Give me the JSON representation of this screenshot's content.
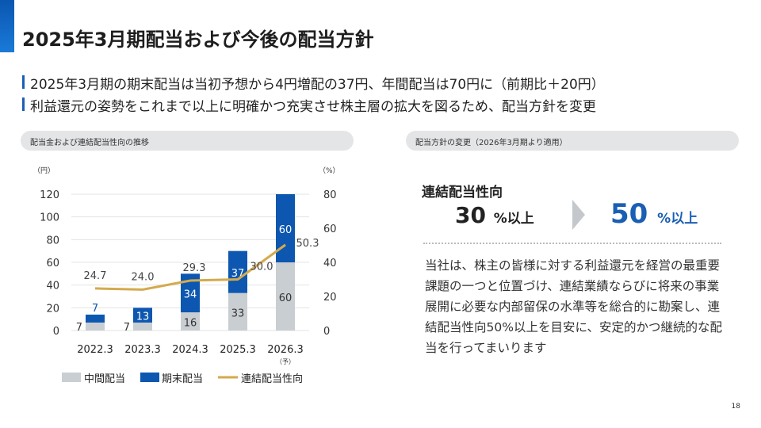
{
  "title": "2025年3月期配当および今後の配当方針",
  "bullets": [
    "2025年3月期の期末配当は当初予想から4円増配の37円、年間配当は70円に（前期比＋20円）",
    "利益還元の姿勢をこれまで以上に明確かつ充実させ株主層の拡大を図るため、配当方針を変更"
  ],
  "left_panel": {
    "header": "配当金および連結配当性向の推移"
  },
  "right_panel": {
    "header": "配当方針の変更（2026年3月期より適用）",
    "label": "連結配当性向",
    "old_value": "30",
    "old_unit": "%以上",
    "new_value": "50",
    "new_unit": "%以上",
    "body": "当社は、株主の皆様に対する利益還元を経営の最重要課題の一つと位置づけ、連結業績ならびに将来の事業展開に必要な内部留保の水準等を総合的に勘案し、連結配当性向50%以上を目安に、安定的かつ継続的な配当を行ってまいります"
  },
  "page_number": "18",
  "colors": {
    "interim": "#c9ced2",
    "year_end": "#0d57b0",
    "payout": "#d4aa4e",
    "accent": "#1a5fb4"
  },
  "chart_data": {
    "type": "bar",
    "stacked": true,
    "categories": [
      "2022.3",
      "2023.3",
      "2024.3",
      "2025.3",
      "2026.3"
    ],
    "category_notes": [
      "",
      "",
      "",
      "",
      "（予）"
    ],
    "series": [
      {
        "name": "中間配当",
        "type": "bar",
        "axis": "left",
        "values": [
          7,
          7,
          16,
          33,
          60
        ]
      },
      {
        "name": "期末配当",
        "type": "bar",
        "axis": "left",
        "values": [
          7,
          13,
          34,
          37,
          60
        ]
      },
      {
        "name": "連結配当性向",
        "type": "line",
        "axis": "right",
        "values": [
          24.7,
          24.0,
          29.3,
          30.0,
          50.3
        ]
      }
    ],
    "ylabel_left": "（円）",
    "ylabel_right": "（%）",
    "ylim_left": [
      0,
      120
    ],
    "yticks_left": [
      0,
      20,
      40,
      60,
      80,
      100,
      120
    ],
    "ylim_right": [
      0,
      80
    ],
    "yticks_right": [
      0,
      20,
      40,
      60,
      80
    ],
    "grid": true,
    "legend": "bottom"
  }
}
